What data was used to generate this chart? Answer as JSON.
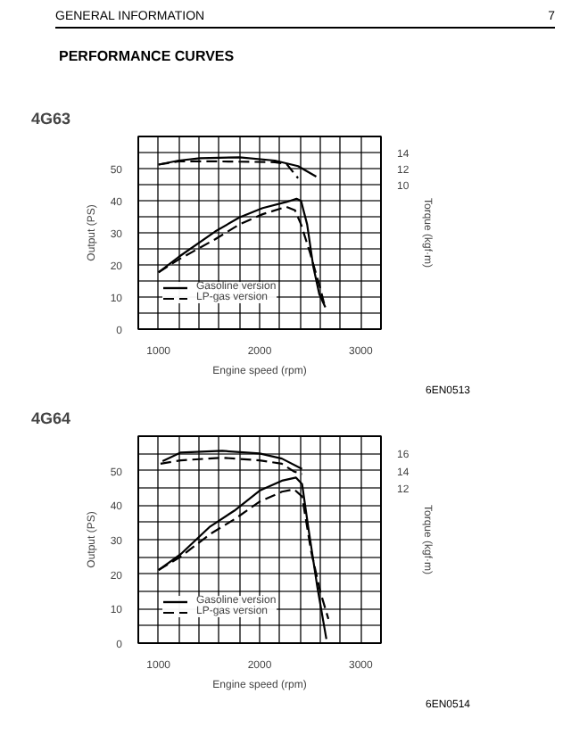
{
  "chart_data": [
    {
      "type": "line",
      "title": "4G63",
      "xlabel": "Engine speed (rpm)",
      "ylabel": "Output (PS)",
      "y2label": "Torque (kgf·m)",
      "annotations": [
        "GENERAL INFORMATION",
        "7",
        "PERFORMANCE CURVES",
        "6EN0513"
      ],
      "xlim": [
        800,
        3200
      ],
      "xticks": [
        {
          "value": 800,
          "label": null
        },
        1000,
        {
          "value": 1200,
          "label": null
        },
        {
          "value": 1400,
          "label": null
        },
        {
          "value": 1600,
          "label": null
        },
        {
          "value": 1800,
          "label": null
        },
        2000,
        {
          "value": 2200,
          "label": null
        },
        {
          "value": 2400,
          "label": null
        },
        {
          "value": 2600,
          "label": null
        },
        {
          "value": 2800,
          "label": null
        },
        3000,
        {
          "value": 3200,
          "label": null
        }
      ],
      "ylim": [
        0,
        60
      ],
      "yticks": [
        0,
        {
          "value": 5,
          "label": null
        },
        10,
        {
          "value": 15,
          "label": null
        },
        20,
        {
          "value": 25,
          "label": null
        },
        30,
        {
          "value": 35,
          "label": null
        },
        40,
        {
          "value": 45,
          "label": null
        },
        50,
        {
          "value": 55,
          "label": null
        },
        {
          "value": 60,
          "label": null
        }
      ],
      "y2lim": [
        -8,
        16
      ],
      "y2ticks": [
        10,
        12,
        14
      ],
      "grid": true,
      "legend": "bottom left",
      "series": [
        {
          "name": "Gasoline version",
          "color": "#000000",
          "line_style": "solid",
          "x": [
            1000,
            1200,
            1560,
            1800,
            2030,
            2265,
            2365,
            2410,
            2470,
            2530,
            2590,
            2650
          ],
          "values": [
            17.7,
            22.5,
            30.4,
            34.8,
            37.7,
            39.6,
            40.6,
            39.9,
            32.6,
            19.6,
            10.9,
            6.8
          ]
        },
        {
          "name": "LP-gas version",
          "color": "#000000",
          "line_style": "dashed",
          "x": [
            1000,
            1200,
            1560,
            1800,
            2030,
            2265,
            2350,
            2410,
            2500,
            2590,
            2650
          ],
          "values": [
            17.7,
            21.7,
            28.0,
            32.6,
            35.8,
            38.1,
            37.0,
            32.6,
            23.6,
            13.8,
            6.5
          ]
        },
        {
          "name": "Gasoline version",
          "color": "#000000",
          "line_style": "solid",
          "axis": "y2",
          "x": [
            1000,
            1200,
            1410,
            1800,
            2150,
            2380,
            2560
          ],
          "values": [
            12.5,
            13.0,
            13.3,
            13.4,
            13.0,
            12.3,
            11.0
          ]
        },
        {
          "name": "LP-gas version",
          "color": "#000000",
          "line_style": "dashed",
          "axis": "y2",
          "x": [
            1000,
            1200,
            1560,
            2150,
            2265,
            2380
          ],
          "values": [
            12.5,
            12.9,
            12.9,
            12.8,
            12.6,
            10.8
          ]
        }
      ]
    },
    {
      "type": "line",
      "title": "4G64",
      "xlabel": "Engine speed (rpm)",
      "ylabel": "Output (PS)",
      "y2label": "Torque (kgf·m)",
      "annotations": [
        "6EN0514"
      ],
      "xlim": [
        800,
        3200
      ],
      "xticks": [
        {
          "value": 800,
          "label": null
        },
        1000,
        {
          "value": 1200,
          "label": null
        },
        {
          "value": 1400,
          "label": null
        },
        {
          "value": 1600,
          "label": null
        },
        {
          "value": 1800,
          "label": null
        },
        2000,
        {
          "value": 2200,
          "label": null
        },
        {
          "value": 2400,
          "label": null
        },
        {
          "value": 2600,
          "label": null
        },
        {
          "value": 2800,
          "label": null
        },
        3000,
        {
          "value": 3200,
          "label": null
        }
      ],
      "ylim": [
        0,
        60
      ],
      "yticks": [
        0,
        {
          "value": 5,
          "label": null
        },
        10,
        {
          "value": 15,
          "label": null
        },
        20,
        {
          "value": 25,
          "label": null
        },
        30,
        {
          "value": 35,
          "label": null
        },
        40,
        {
          "value": 45,
          "label": null
        },
        50,
        {
          "value": 55,
          "label": null
        },
        {
          "value": 60,
          "label": null
        }
      ],
      "y2lim": [
        -6,
        18
      ],
      "y2ticks": [
        12,
        14,
        16
      ],
      "grid": true,
      "legend": "bottom left",
      "series": [
        {
          "name": "Gasoline version",
          "color": "#000000",
          "line_style": "solid",
          "x": [
            1000,
            1220,
            1510,
            1750,
            2000,
            2220,
            2360,
            2420,
            2480,
            2570,
            2660
          ],
          "values": [
            21.2,
            25.8,
            33.8,
            38.4,
            44.2,
            47.1,
            48.0,
            46.1,
            33.8,
            16.4,
            1.2
          ]
        },
        {
          "name": "LP-gas version",
          "color": "#000000",
          "line_style": "dashed",
          "x": [
            1000,
            1220,
            1510,
            1750,
            2000,
            2220,
            2340,
            2420,
            2510,
            2600,
            2680
          ],
          "values": [
            21.2,
            25.1,
            31.6,
            35.9,
            41.0,
            43.9,
            44.6,
            42.5,
            26.5,
            14.9,
            7.0
          ]
        },
        {
          "name": "Gasoline version",
          "color": "#000000",
          "line_style": "solid",
          "axis": "y2",
          "x": [
            1040,
            1220,
            1630,
            2000,
            2220,
            2420
          ],
          "values": [
            15.1,
            16.1,
            16.3,
            16.0,
            15.4,
            14.2
          ]
        },
        {
          "name": "LP-gas version",
          "color": "#000000",
          "line_style": "dashed",
          "axis": "y2",
          "x": [
            1020,
            1220,
            1630,
            2000,
            2220,
            2340,
            2420
          ],
          "values": [
            14.8,
            15.2,
            15.5,
            15.2,
            14.8,
            13.9,
            13.6
          ]
        }
      ]
    }
  ]
}
